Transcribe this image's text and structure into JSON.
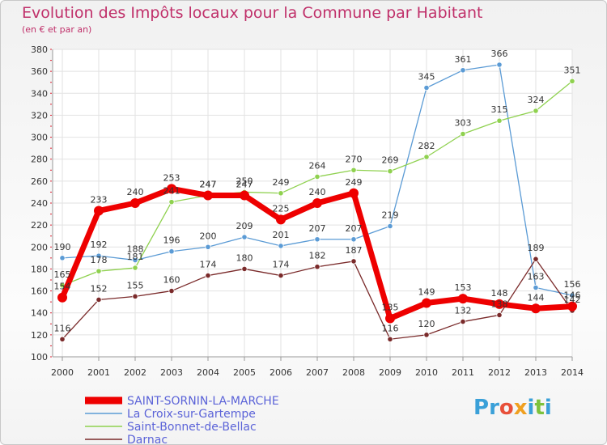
{
  "header": {
    "title": "Evolution des Impôts locaux pour la Commune par Habitant",
    "subtitle": "(en € et par an)"
  },
  "logo": {
    "text": "Proxiti",
    "letters": [
      {
        "ch": "P",
        "color": "#3aa0d8"
      },
      {
        "ch": "r",
        "color": "#3aa0d8"
      },
      {
        "ch": "o",
        "color": "#e8503a"
      },
      {
        "ch": "x",
        "color": "#f0a020"
      },
      {
        "ch": "i",
        "color": "#3aa0d8"
      },
      {
        "ch": "t",
        "color": "#7cc23c"
      },
      {
        "ch": "i",
        "color": "#3aa0d8"
      }
    ]
  },
  "chart_data": {
    "type": "line",
    "title": "Evolution des Impôts locaux pour la Commune par Habitant",
    "subtitle": "(en € et par an)",
    "xlabel": "",
    "ylabel": "",
    "x": [
      "2000",
      "2001",
      "2002",
      "2003",
      "2004",
      "2005",
      "2006",
      "2007",
      "2008",
      "2009",
      "2010",
      "2011",
      "2012",
      "2013",
      "2014"
    ],
    "ylim": [
      100,
      380
    ],
    "yticks": [
      100,
      120,
      140,
      160,
      180,
      200,
      220,
      240,
      260,
      280,
      300,
      320,
      340,
      360,
      380
    ],
    "grid": true,
    "legend_position": "bottom-left",
    "series": [
      {
        "name": "SAINT-SORNIN-LA-MARCHE",
        "color": "#ee0000",
        "values": [
          154,
          233,
          240,
          253,
          247,
          247,
          225,
          240,
          249,
          135,
          149,
          153,
          148,
          144,
          146
        ]
      },
      {
        "name": "La Croix-sur-Gartempe",
        "color": "#5b9bd5",
        "values": [
          190,
          192,
          188,
          196,
          200,
          209,
          201,
          207,
          207,
          219,
          345,
          361,
          366,
          163,
          156
        ]
      },
      {
        "name": "Saint-Bonnet-de-Bellac",
        "color": "#8fd14f",
        "values": [
          165,
          178,
          181,
          241,
          247,
          250,
          249,
          264,
          270,
          269,
          282,
          303,
          315,
          324,
          351
        ]
      },
      {
        "name": "Darnac",
        "color": "#7a2a2a",
        "values": [
          116,
          152,
          155,
          160,
          174,
          180,
          174,
          182,
          187,
          116,
          120,
          132,
          138,
          189,
          142
        ]
      }
    ]
  }
}
